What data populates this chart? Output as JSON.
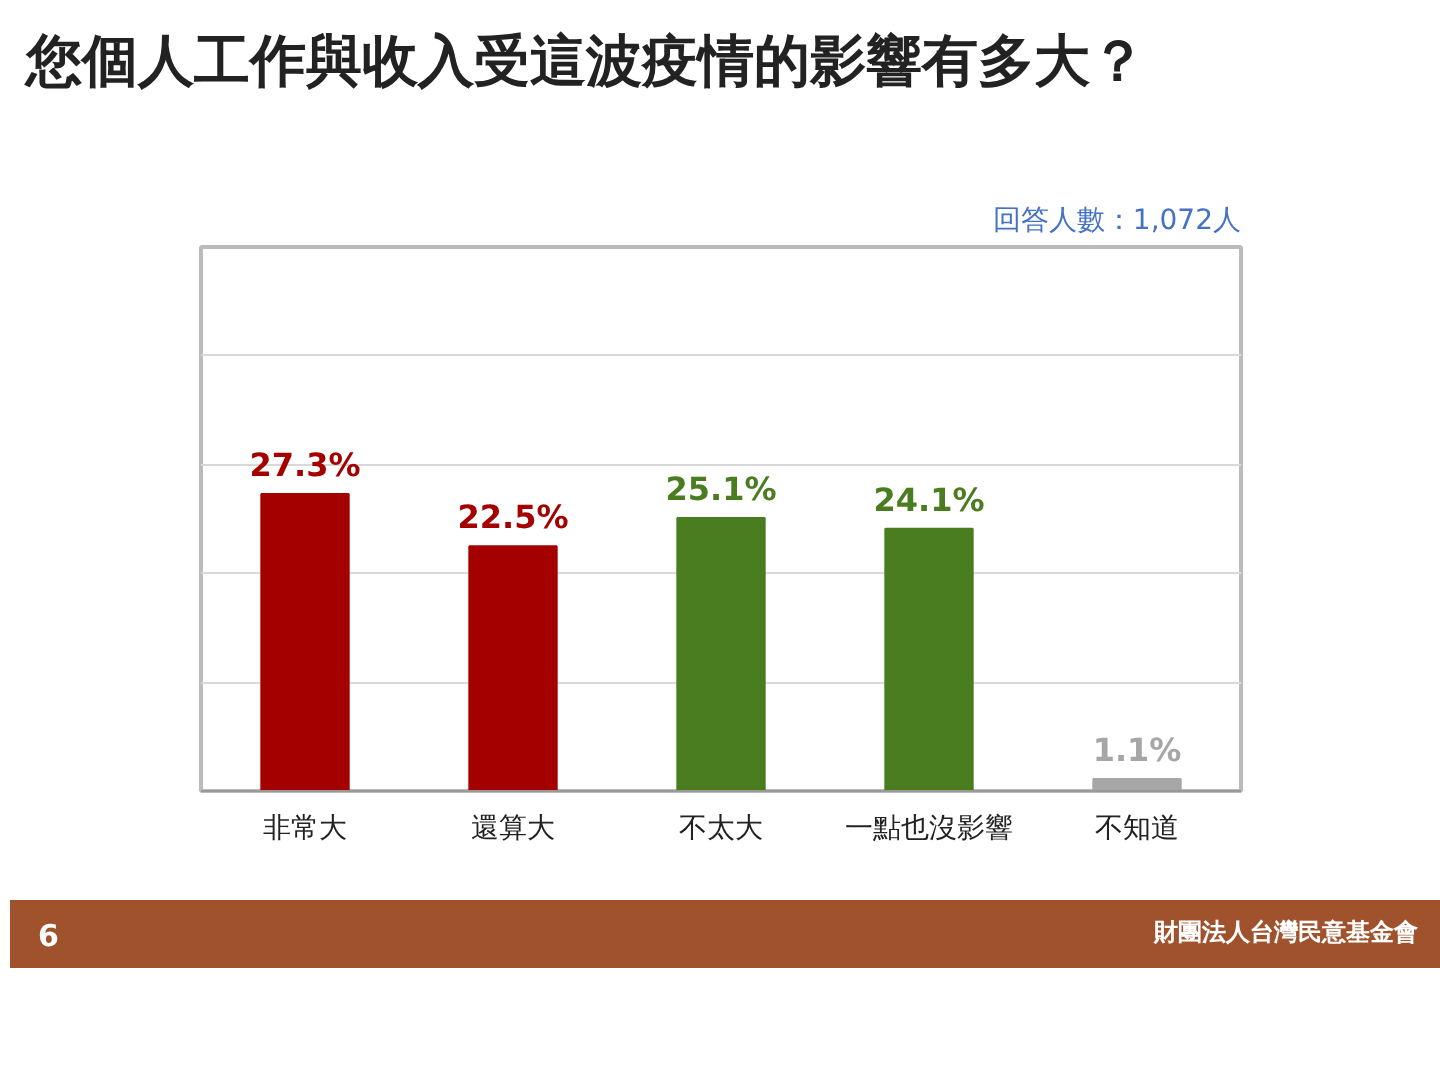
{
  "chart_data": {
    "type": "bar",
    "title": "您個人工作與收入受這波疫情的影響有多大？",
    "categories": [
      "非常大",
      "還算大",
      "不太大",
      "一點也沒影響",
      "不知道"
    ],
    "values": [
      27.3,
      22.5,
      25.1,
      24.1,
      1.1
    ],
    "value_labels": [
      "27.3%",
      "22.5%",
      "25.1%",
      "24.1%",
      "1.1%"
    ],
    "colors": [
      "#a50000",
      "#a50000",
      "#4a7c20",
      "#4a7c20",
      "#a6a6a6"
    ],
    "ylim": [
      0,
      50
    ],
    "yticks": [
      {
        "value": 0,
        "label": null
      },
      {
        "value": 10,
        "label": null
      },
      {
        "value": 20,
        "label": null
      },
      {
        "value": 30,
        "label": null
      },
      {
        "value": 40,
        "label": null
      },
      {
        "value": 50,
        "label": null
      }
    ],
    "grid": "y",
    "tick_labels": "x",
    "annotations": [
      "回答人數：1,072人",
      "6",
      "財團法人台灣民意基金會"
    ]
  }
}
